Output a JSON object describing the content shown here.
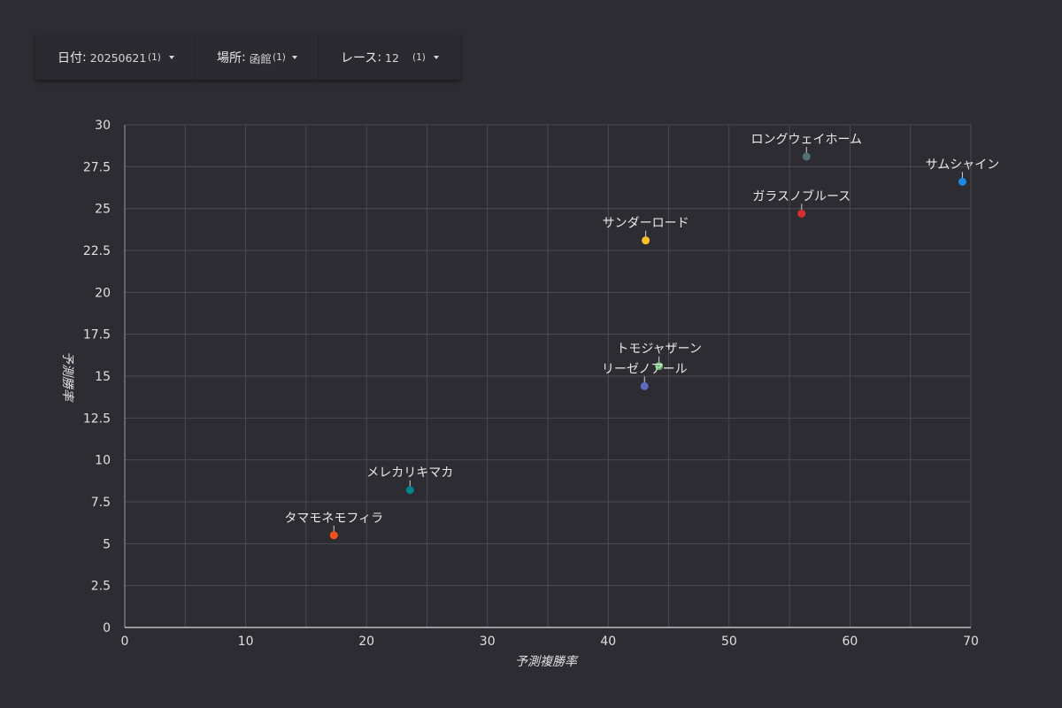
{
  "filters": [
    {
      "label": "日付",
      "value": "20250621",
      "count": "(1)"
    },
    {
      "label": "場所",
      "value": "函館",
      "count": "(1)"
    },
    {
      "label": "レース",
      "value": "12",
      "count": "(1)"
    }
  ],
  "chart_data": {
    "type": "scatter",
    "title": "",
    "xlabel": "予測複勝率",
    "ylabel": "予測勝率",
    "xlim": [
      0,
      70
    ],
    "ylim": [
      0,
      30
    ],
    "x_ticks": [
      0,
      10,
      20,
      30,
      40,
      50,
      60,
      70
    ],
    "y_ticks": [
      0,
      2.5,
      5,
      7.5,
      10,
      12.5,
      15,
      17.5,
      20,
      22.5,
      25,
      27.5,
      30
    ],
    "x_tick_labels": [
      "0",
      "10",
      "20",
      "30",
      "40",
      "50",
      "60",
      "70"
    ],
    "y_tick_labels": [
      "0",
      "2.5",
      "5",
      "7.5",
      "10",
      "12.5",
      "15",
      "17.5",
      "20",
      "22.5",
      "25",
      "27.5",
      "30"
    ],
    "grid": true,
    "points": [
      {
        "name": "ロングウェイホーム",
        "x": 56.4,
        "y": 28.1,
        "color": "#546e7a"
      },
      {
        "name": "サムシャイン",
        "x": 69.3,
        "y": 26.6,
        "color": "#1e88e5"
      },
      {
        "name": "ガラスノブルース",
        "x": 56.0,
        "y": 24.7,
        "color": "#d32f2f"
      },
      {
        "name": "サンダーロード",
        "x": 43.1,
        "y": 23.1,
        "color": "#fbc02d"
      },
      {
        "name": "トモジャザーン",
        "x": 44.2,
        "y": 15.6,
        "color": "#66bb6a"
      },
      {
        "name": "リーゼノアール",
        "x": 43.0,
        "y": 14.4,
        "color": "#5c6bc0"
      },
      {
        "name": "メレカリキマカ",
        "x": 23.6,
        "y": 8.2,
        "color": "#00838f"
      },
      {
        "name": "タマモネモフィラ",
        "x": 17.3,
        "y": 5.5,
        "color": "#f4511e"
      }
    ]
  }
}
